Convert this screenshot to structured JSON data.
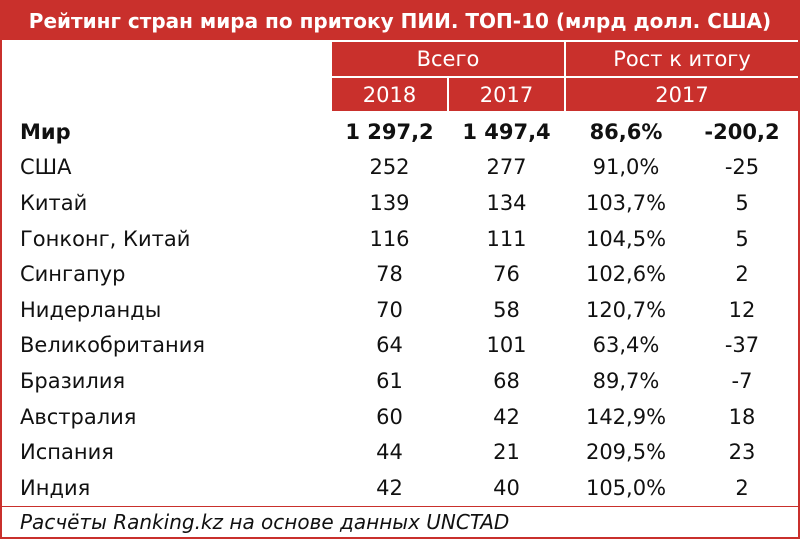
{
  "header": {
    "title": "Рейтинг стран мира по притоку ПИИ. ТОП-10 (млрд долл. США)",
    "group_total": "Всего",
    "group_growth": "Рост к итогу",
    "years": [
      "2018",
      "2017",
      "2017"
    ]
  },
  "table": {
    "rows": [
      [
        "Мир",
        "1 297,2",
        "1 497,4",
        "86,6%",
        "-200,2"
      ],
      [
        "США",
        "252",
        "277",
        "91,0%",
        "-25"
      ],
      [
        "Китай",
        "139",
        "134",
        "103,7%",
        "5"
      ],
      [
        "Гонконг, Китай",
        "116",
        "111",
        "104,5%",
        "5"
      ],
      [
        "Сингапур",
        "78",
        "76",
        "102,6%",
        "2"
      ],
      [
        "Нидерланды",
        "70",
        "58",
        "120,7%",
        "12"
      ],
      [
        "Великобритания",
        "64",
        "101",
        "63,4%",
        "-37"
      ],
      [
        "Бразилия",
        "61",
        "68",
        "89,7%",
        "-7"
      ],
      [
        "Австралия",
        "60",
        "42",
        "142,9%",
        "18"
      ],
      [
        "Испания",
        "44",
        "21",
        "209,5%",
        "23"
      ],
      [
        "Индия",
        "42",
        "40",
        "105,0%",
        "2"
      ]
    ]
  },
  "footer": {
    "note": "Расчёты Ranking.kz на основе данных UNCTAD"
  }
}
